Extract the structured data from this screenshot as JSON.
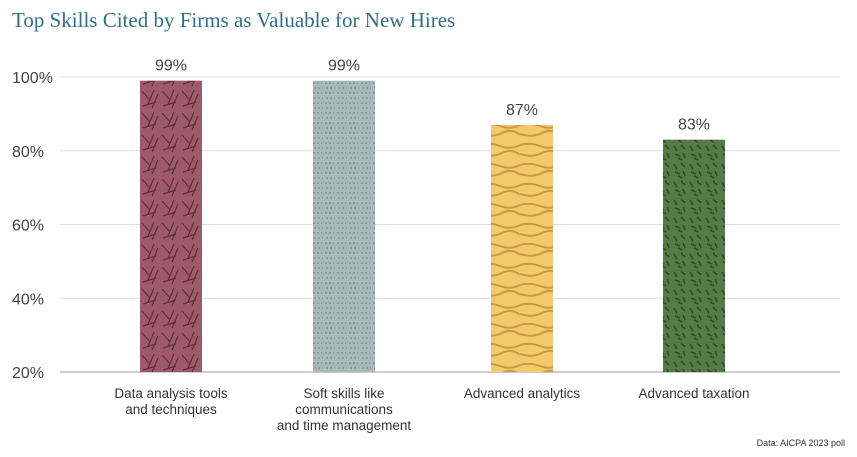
{
  "chart_data": {
    "type": "bar",
    "title": "Top Skills Cited by Firms as Valuable for New Hires",
    "categories": [
      [
        "Data analysis tools",
        "and techniques"
      ],
      [
        "Soft skills like",
        "communications",
        "and time management"
      ],
      [
        "Advanced analytics"
      ],
      [
        "Advanced taxation"
      ]
    ],
    "values": [
      99,
      99,
      87,
      83
    ],
    "data_labels": [
      "99%",
      "99%",
      "87%",
      "83%"
    ],
    "colors": [
      "#9e5a6b",
      "#a7b9b9",
      "#f2c96b",
      "#567b46"
    ],
    "pattern_colors": [
      "#5e3040",
      "#7f8f8f",
      "#c99a45",
      "#2f4a27"
    ],
    "ylim": [
      20,
      100
    ],
    "yticks": [
      20,
      40,
      60,
      80,
      100
    ],
    "ytick_labels": [
      "20%",
      "40%",
      "60%",
      "80%",
      "100%"
    ],
    "grid": true,
    "xlabel": "",
    "ylabel": "",
    "source": "Data: AICPA 2023 poll"
  }
}
